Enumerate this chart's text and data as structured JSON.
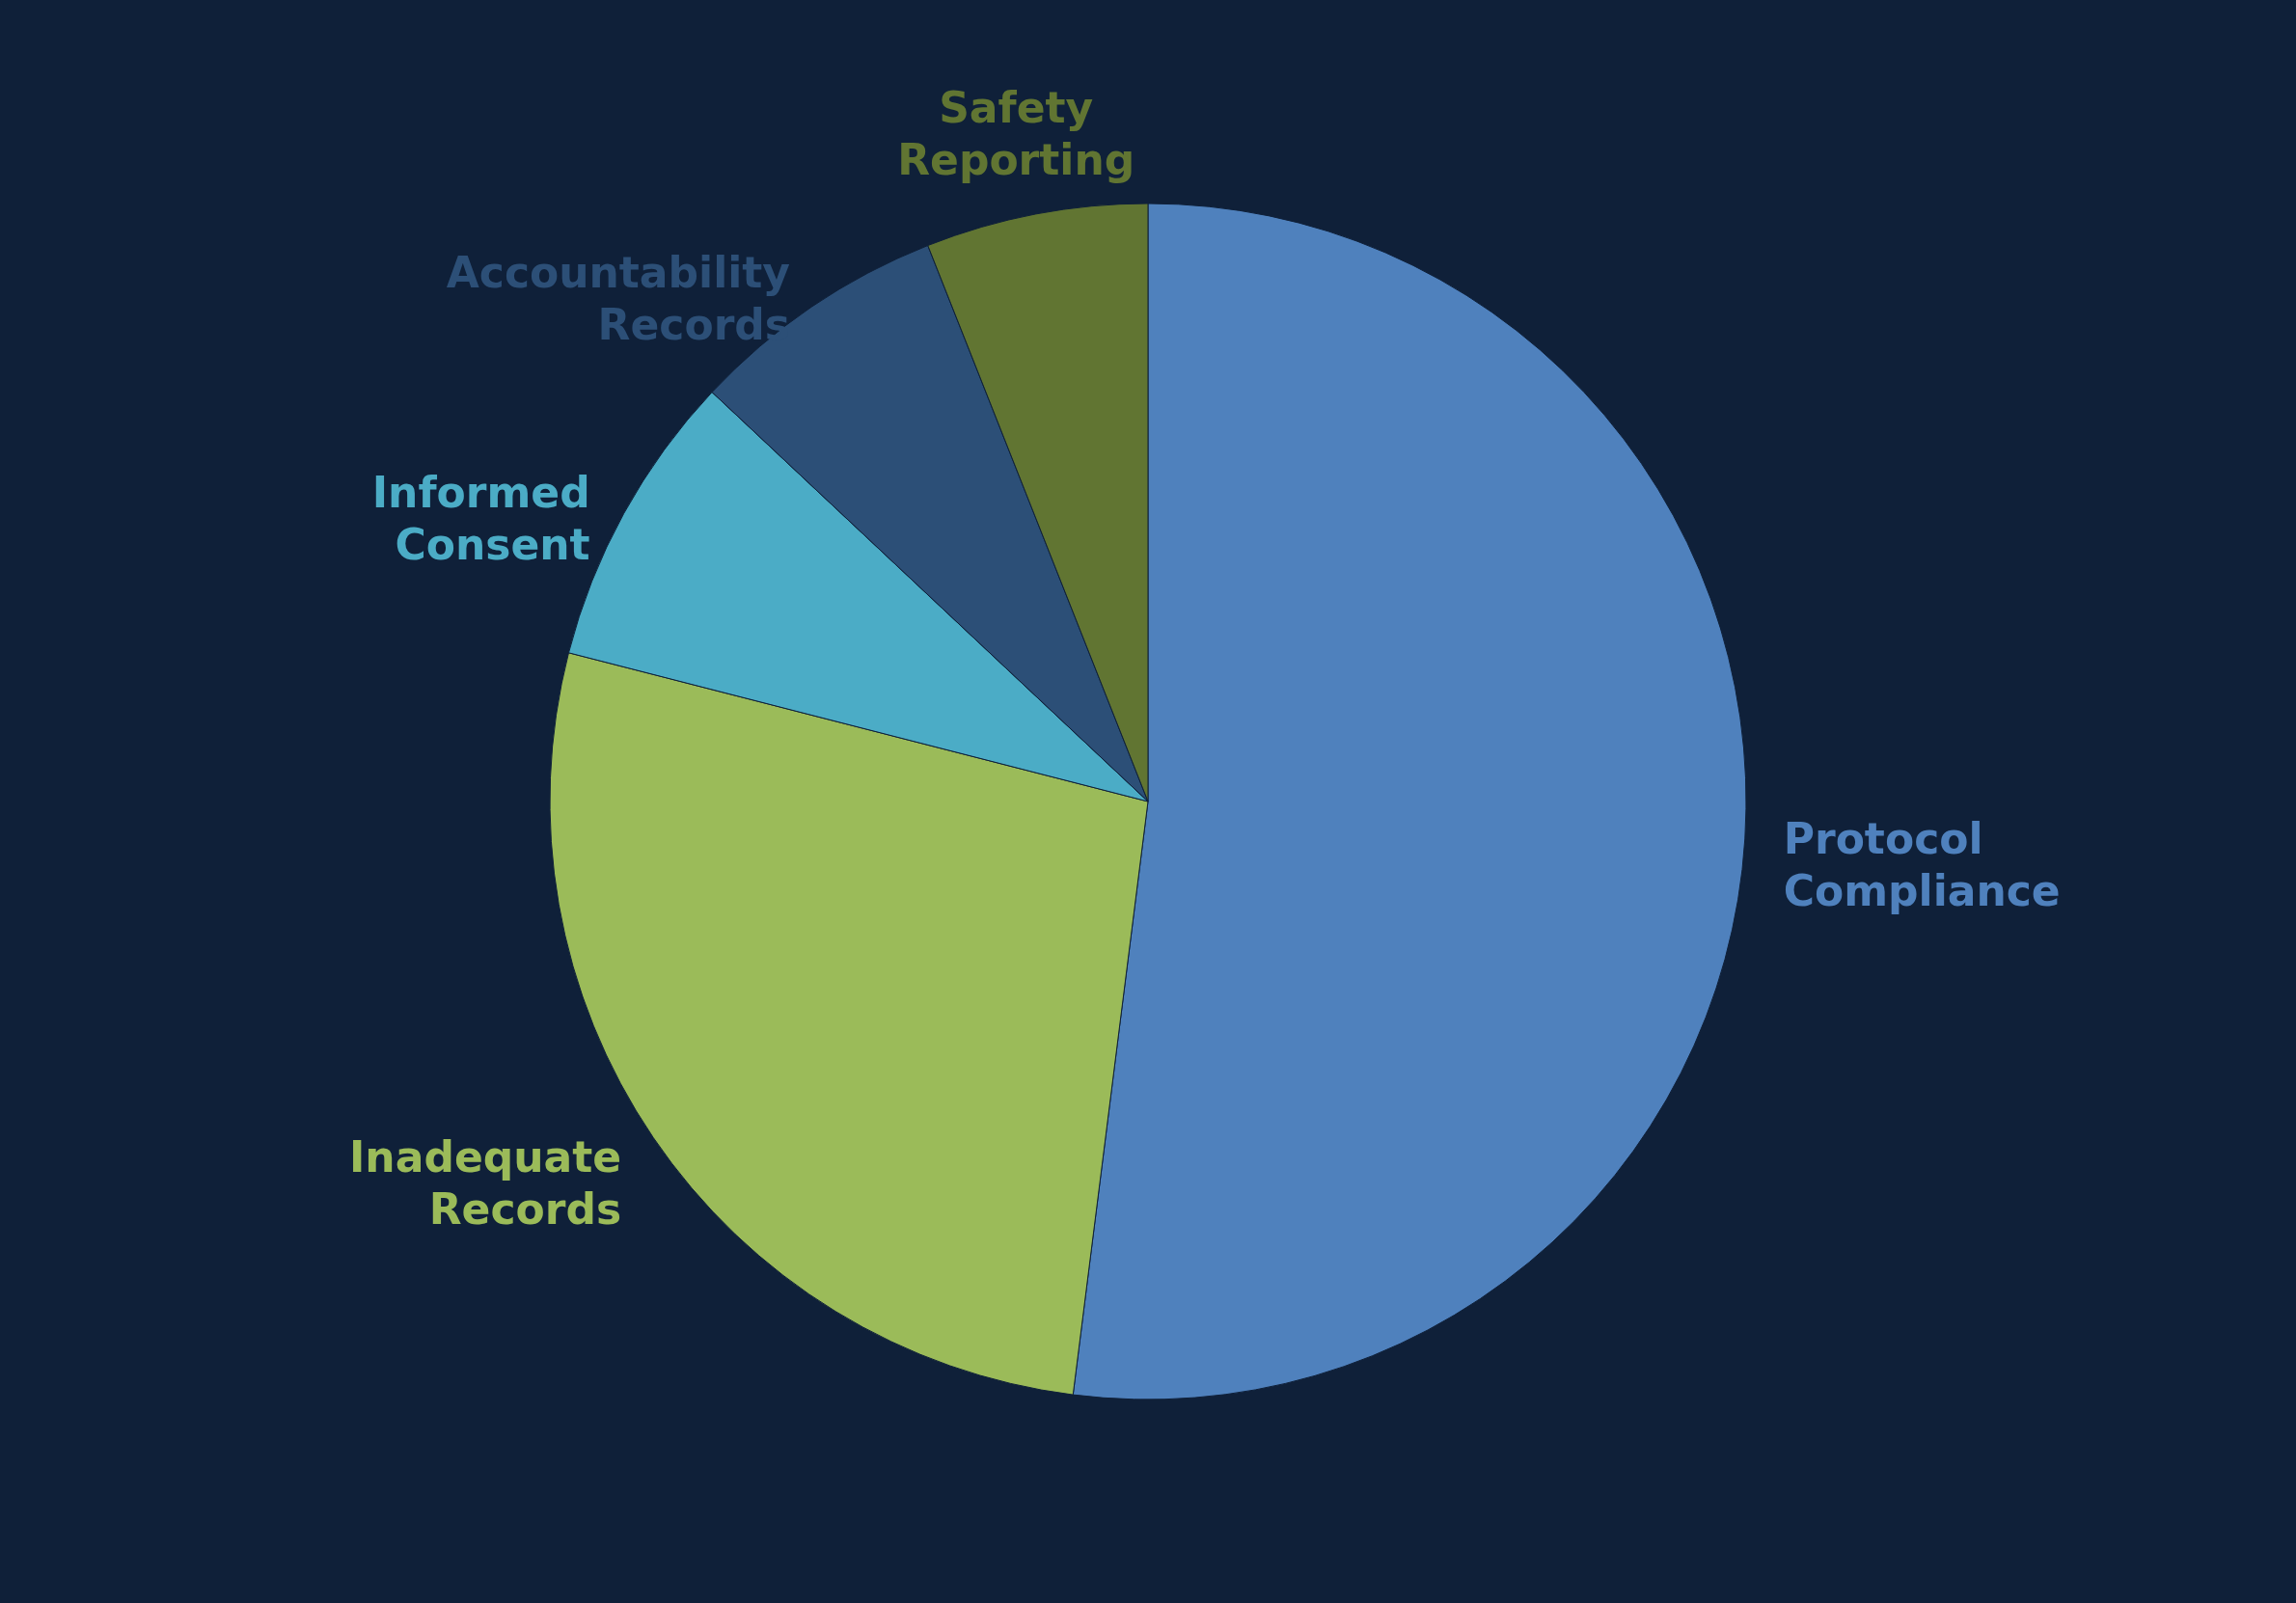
{
  "chart_data": {
    "type": "pie",
    "categories": [
      "Protocol Compliance",
      "Inadequate Records",
      "Informed Consent",
      "Accountability Records",
      "Safety Reporting"
    ],
    "values": [
      52,
      27,
      8,
      7,
      6
    ],
    "colors": [
      "#4f81bd",
      "#9bbb59",
      "#4bacc6",
      "#2c4f77",
      "#617532"
    ]
  }
}
